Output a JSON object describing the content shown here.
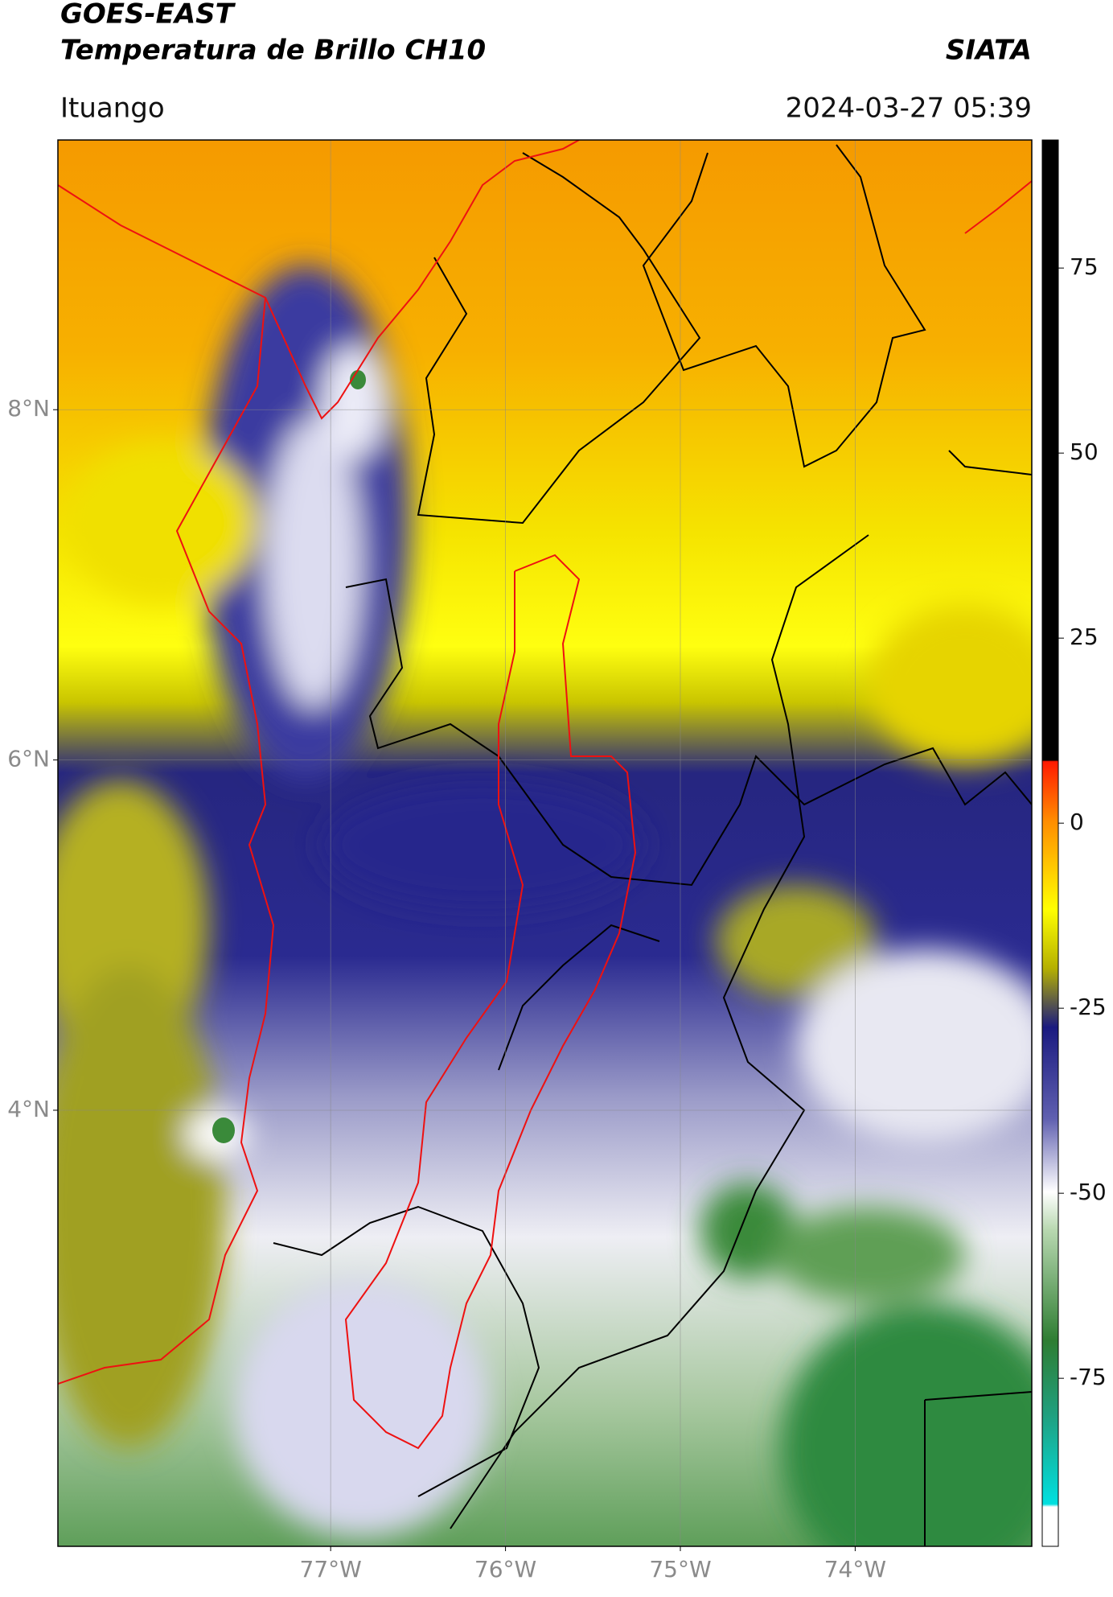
{
  "header": {
    "title": "GOES-EAST",
    "subtitle": "Temperatura de Brillo CH10",
    "source": "SIATA",
    "location": "Ituango",
    "datetime": "2024-03-27 05:39"
  },
  "map": {
    "xlim": [
      -78.56,
      -72.99
    ],
    "ylim": [
      1.51,
      9.54
    ],
    "xticks": [
      {
        "value": -77,
        "label": "77°W"
      },
      {
        "value": -76,
        "label": "76°W"
      },
      {
        "value": -75,
        "label": "75°W"
      },
      {
        "value": -74,
        "label": "74°W"
      }
    ],
    "yticks": [
      {
        "value": 8,
        "label": "8°N"
      },
      {
        "value": 6,
        "label": "6°N"
      },
      {
        "value": 4,
        "label": "4°N"
      }
    ],
    "grid": true
  },
  "colorbar": {
    "lim": [
      -97.7,
      92.3
    ],
    "ticks": [
      75,
      50,
      25,
      0,
      -25,
      -50,
      -75
    ]
  }
}
